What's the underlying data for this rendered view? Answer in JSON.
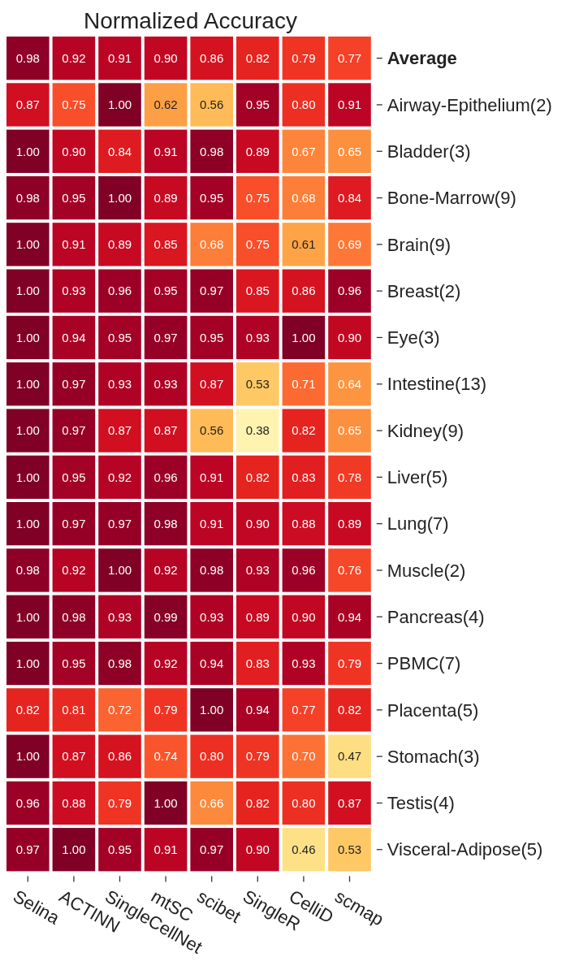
{
  "chart_data": {
    "type": "heatmap",
    "title": "Normalized Accuracy",
    "categories": [
      "Selina",
      "ACTINN",
      "SingleCellNet",
      "mtSC",
      "scibet",
      "SingleR",
      "CelliD",
      "scmap"
    ],
    "y_categories": [
      "Average",
      "Airway-Epithelium(2)",
      "Bladder(3)",
      "Bone-Marrow(9)",
      "Brain(9)",
      "Breast(2)",
      "Eye(3)",
      "Intestine(13)",
      "Kidney(9)",
      "Liver(5)",
      "Lung(7)",
      "Muscle(2)",
      "Pancreas(4)",
      "PBMC(7)",
      "Placenta(5)",
      "Stomach(3)",
      "Testis(4)",
      "Visceral-Adipose(5)"
    ],
    "cells": [
      [
        0.98,
        0.92,
        0.91,
        0.9,
        0.86,
        0.82,
        0.79,
        0.77
      ],
      [
        0.87,
        0.75,
        1.0,
        0.62,
        0.56,
        0.95,
        0.8,
        0.91
      ],
      [
        1.0,
        0.9,
        0.84,
        0.91,
        0.98,
        0.89,
        0.67,
        0.65
      ],
      [
        0.98,
        0.95,
        1.0,
        0.89,
        0.95,
        0.75,
        0.68,
        0.84
      ],
      [
        1.0,
        0.91,
        0.89,
        0.85,
        0.68,
        0.75,
        0.61,
        0.69
      ],
      [
        1.0,
        0.93,
        0.96,
        0.95,
        0.97,
        0.85,
        0.86,
        0.96
      ],
      [
        1.0,
        0.94,
        0.95,
        0.97,
        0.95,
        0.93,
        1.0,
        0.9
      ],
      [
        1.0,
        0.97,
        0.93,
        0.93,
        0.87,
        0.53,
        0.71,
        0.64
      ],
      [
        1.0,
        0.97,
        0.87,
        0.87,
        0.56,
        0.38,
        0.82,
        0.65
      ],
      [
        1.0,
        0.95,
        0.92,
        0.96,
        0.91,
        0.82,
        0.83,
        0.78
      ],
      [
        1.0,
        0.97,
        0.97,
        0.98,
        0.91,
        0.9,
        0.88,
        0.89
      ],
      [
        0.98,
        0.92,
        1.0,
        0.92,
        0.98,
        0.93,
        0.96,
        0.76
      ],
      [
        1.0,
        0.98,
        0.93,
        0.99,
        0.93,
        0.89,
        0.9,
        0.94
      ],
      [
        1.0,
        0.95,
        0.98,
        0.92,
        0.94,
        0.83,
        0.93,
        0.79
      ],
      [
        0.82,
        0.81,
        0.72,
        0.79,
        1.0,
        0.94,
        0.77,
        0.82
      ],
      [
        1.0,
        0.87,
        0.86,
        0.74,
        0.8,
        0.79,
        0.7,
        0.47
      ],
      [
        0.96,
        0.88,
        0.79,
        1.0,
        0.66,
        0.82,
        0.8,
        0.87
      ],
      [
        0.97,
        1.0,
        0.95,
        0.91,
        0.97,
        0.9,
        0.46,
        0.53
      ]
    ],
    "cell_labels": [
      [
        "0.98",
        "0.92",
        "0.91",
        "0.90",
        "0.86",
        "0.82",
        "0.79",
        "0.77"
      ],
      [
        "0.87",
        "0.75",
        "1.00",
        "0.62",
        "0.56",
        "0.95",
        "0.80",
        "0.91"
      ],
      [
        "1.00",
        "0.90",
        "0.84",
        "0.91",
        "0.98",
        "0.89",
        "0.67",
        "0.65"
      ],
      [
        "0.98",
        "0.95",
        "1.00",
        "0.89",
        "0.95",
        "0.75",
        "0.68",
        "0.84"
      ],
      [
        "1.00",
        "0.91",
        "0.89",
        "0.85",
        "0.68",
        "0.75",
        "0.61",
        "0.69"
      ],
      [
        "1.00",
        "0.93",
        "0.96",
        "0.95",
        "0.97",
        "0.85",
        "0.86",
        "0.96"
      ],
      [
        "1.00",
        "0.94",
        "0.95",
        "0.97",
        "0.95",
        "0.93",
        "1.00",
        "0.90"
      ],
      [
        "1.00",
        "0.97",
        "0.93",
        "0.93",
        "0.87",
        "0.53",
        "0.71",
        "0.64"
      ],
      [
        "1.00",
        "0.97",
        "0.87",
        "0.87",
        "0.56",
        "0.38",
        "0.82",
        "0.65"
      ],
      [
        "1.00",
        "0.95",
        "0.92",
        "0.96",
        "0.91",
        "0.82",
        "0.83",
        "0.78"
      ],
      [
        "1.00",
        "0.97",
        "0.97",
        "0.98",
        "0.91",
        "0.90",
        "0.88",
        "0.89"
      ],
      [
        "0.98",
        "0.92",
        "1.00",
        "0.92",
        "0.98",
        "0.93",
        "0.96",
        "0.76"
      ],
      [
        "1.00",
        "0.98",
        "0.93",
        "0.99",
        "0.93",
        "0.89",
        "0.90",
        "0.94"
      ],
      [
        "1.00",
        "0.95",
        "0.98",
        "0.92",
        "0.94",
        "0.83",
        "0.93",
        "0.79"
      ],
      [
        "0.82",
        "0.81",
        "0.72",
        "0.79",
        "1.00",
        "0.94",
        "0.77",
        "0.82"
      ],
      [
        "1.00",
        "0.87",
        "0.86",
        "0.74",
        "0.80",
        "0.79",
        "0.70",
        "0.47"
      ],
      [
        "0.96",
        "0.88",
        "0.79",
        "1.00",
        "0.66",
        "0.82",
        "0.80",
        "0.87"
      ],
      [
        "0.97",
        "1.00",
        "0.95",
        "0.91",
        "0.97",
        "0.90",
        "0.46",
        "0.53"
      ]
    ]
  }
}
